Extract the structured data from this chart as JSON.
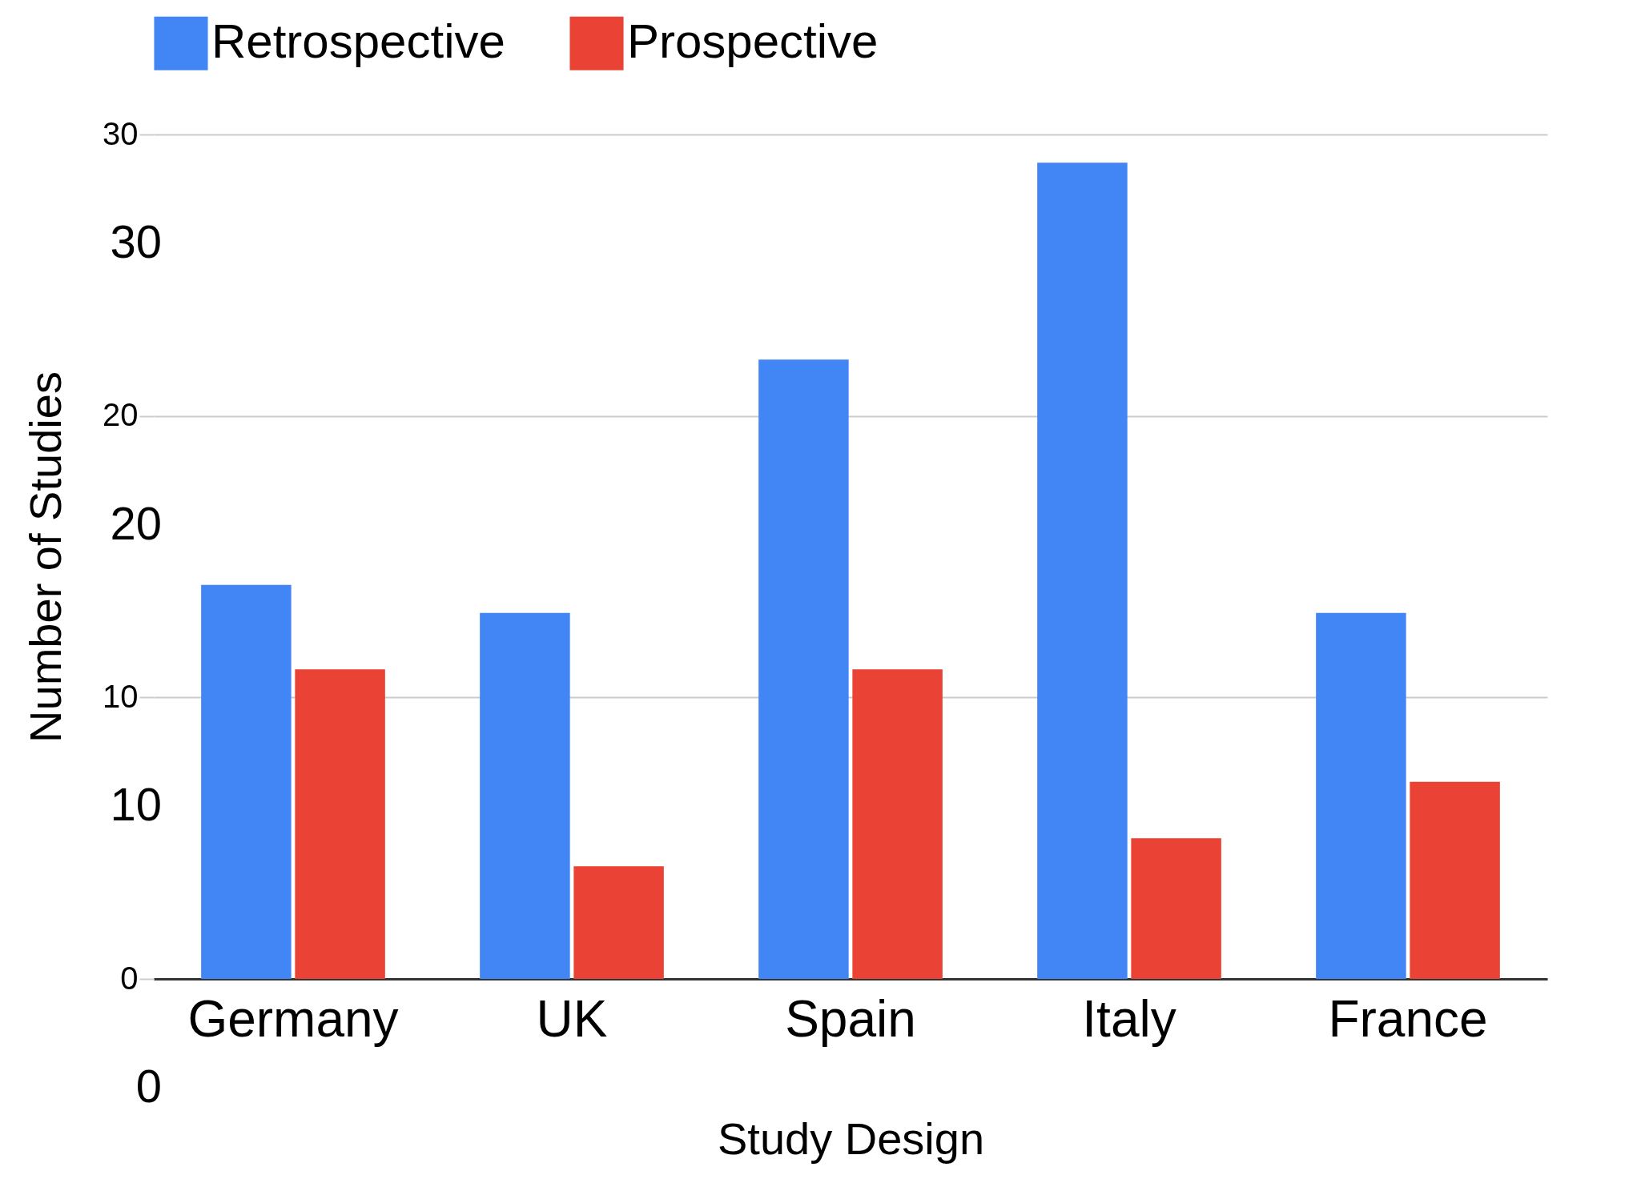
{
  "chart_data": {
    "type": "bar",
    "xlabel": "Study Design",
    "ylabel": "Number of Studies",
    "categories": [
      "Germany",
      "UK",
      "Spain",
      "Italy",
      "France"
    ],
    "series": [
      {
        "name": "Retrospective",
        "color": "#4285f4",
        "values": [
          14,
          13,
          22,
          29,
          13
        ]
      },
      {
        "name": "Prospective",
        "color": "#ea4335",
        "values": [
          11,
          4,
          11,
          5,
          7
        ]
      }
    ],
    "ylim": [
      0,
      30
    ],
    "yticks": [
      0,
      10,
      20,
      30
    ],
    "annotations": [
      "30",
      "20",
      "10",
      "0"
    ],
    "grid": "y",
    "legend": "top"
  }
}
